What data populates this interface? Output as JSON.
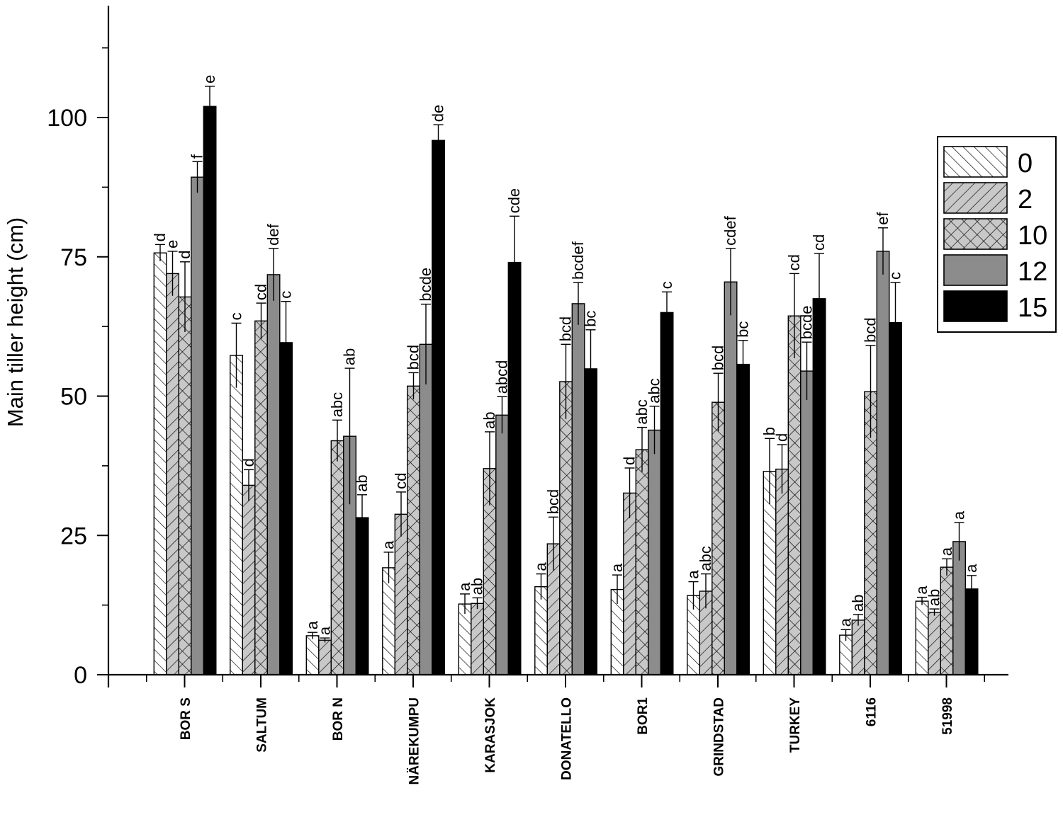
{
  "chart_data": {
    "type": "bar",
    "ylabel": "Main tiller height (cm)",
    "xlabel": "",
    "ylim": [
      0,
      120
    ],
    "yticks": [
      0,
      25,
      50,
      75,
      100
    ],
    "grid": false,
    "legend_position": "right",
    "categories": [
      "BOR S",
      "SALTUM",
      "BOR N",
      "NÄREKUMPU",
      "KARASJOK",
      "DONATELLO",
      "BOR1",
      "GRINDSTAD",
      "TURKEY",
      "6116",
      "51998"
    ],
    "series": [
      {
        "name": "0",
        "pattern": "forward-hatch",
        "color": "#ffffff",
        "values": [
          75.7,
          57.3,
          7.0,
          19.2,
          12.7,
          15.8,
          15.3,
          14.2,
          36.5,
          7.1,
          13.2
        ],
        "errors": [
          1.5,
          5.8,
          0.6,
          2.8,
          1.8,
          2.3,
          2.6,
          2.5,
          5.9,
          1.0,
          0.7
        ],
        "letters": [
          "d",
          "c",
          "a",
          "a",
          "a",
          "a",
          "a",
          "a",
          "b",
          "a",
          "a"
        ]
      },
      {
        "name": "2",
        "pattern": "backward-hatch",
        "color": "#c8c8c8",
        "values": [
          72.0,
          34.0,
          6.2,
          28.8,
          12.8,
          23.5,
          32.6,
          15.0,
          36.9,
          9.8,
          11.2
        ],
        "errors": [
          4.0,
          2.8,
          0.4,
          4.0,
          1.0,
          4.8,
          4.5,
          3.1,
          4.4,
          1.0,
          0.6
        ],
        "letters": [
          "e",
          "d",
          "a",
          "cd",
          "ab",
          "bcd",
          "d",
          "abc",
          "d",
          "ab",
          "ab"
        ]
      },
      {
        "name": "10",
        "pattern": "cross-hatch",
        "color": "#c8c8c8",
        "values": [
          67.8,
          63.5,
          42.0,
          51.8,
          37.0,
          52.6,
          40.4,
          48.9,
          64.4,
          50.8,
          19.3
        ],
        "errors": [
          6.3,
          3.2,
          3.7,
          2.4,
          6.6,
          6.7,
          4.0,
          5.2,
          7.6,
          8.3,
          1.5
        ],
        "letters": [
          "d",
          "cd",
          "abc",
          "bcd",
          "ab",
          "bcd",
          "abc",
          "bcd",
          "cd",
          "bcd",
          "a"
        ]
      },
      {
        "name": "12",
        "pattern": "solid",
        "color": "#8c8c8c",
        "values": [
          89.3,
          71.8,
          42.8,
          59.3,
          46.6,
          66.6,
          43.9,
          70.5,
          54.5,
          76.0,
          23.9
        ],
        "errors": [
          2.8,
          4.7,
          12.2,
          7.2,
          3.3,
          3.8,
          4.3,
          6.0,
          5.2,
          4.2,
          3.4
        ],
        "letters": [
          "f",
          "def",
          "ab",
          "bcde",
          "abcd",
          "bcdef",
          "abc",
          "cdef",
          "bcde",
          "ef",
          "a"
        ]
      },
      {
        "name": "15",
        "pattern": "solid",
        "color": "#000000",
        "values": [
          102.0,
          59.6,
          28.2,
          95.9,
          74.0,
          54.9,
          65.0,
          55.7,
          67.5,
          63.2,
          15.4
        ],
        "errors": [
          3.6,
          7.4,
          4.1,
          2.8,
          8.3,
          7.0,
          3.7,
          4.3,
          8.1,
          7.2,
          2.4
        ],
        "letters": [
          "e",
          "c",
          "ab",
          "de",
          "cde",
          "bc",
          "c",
          "bc",
          "cd",
          "c",
          "a"
        ]
      }
    ]
  }
}
